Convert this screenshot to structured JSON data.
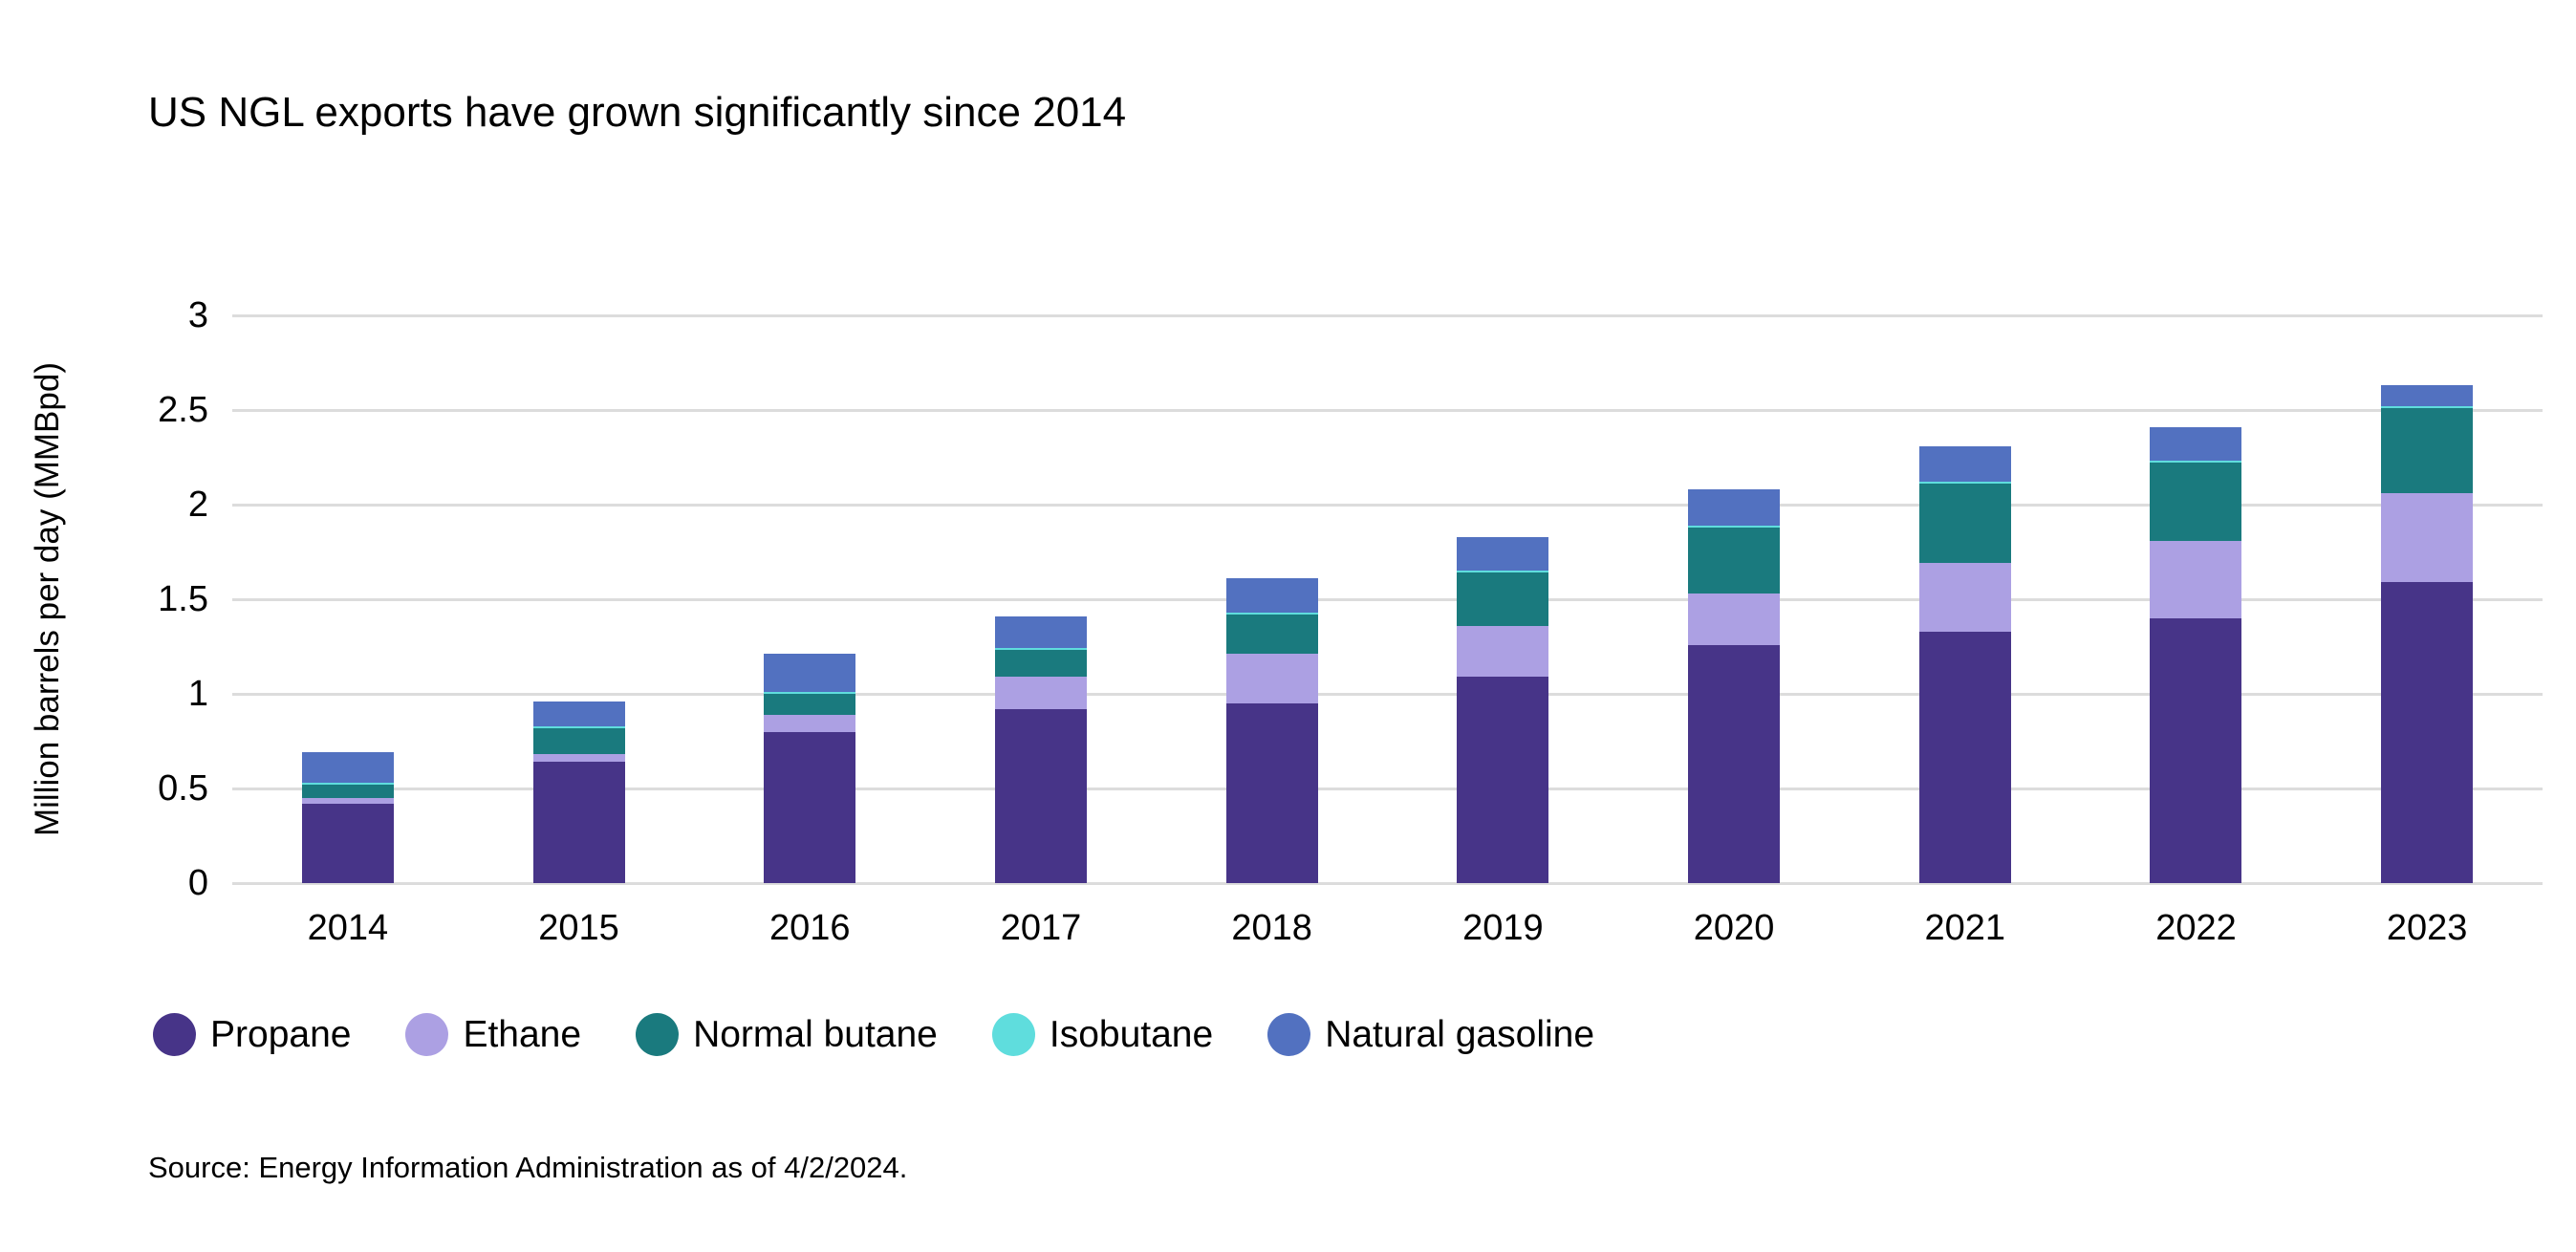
{
  "title": "US NGL exports have grown significantly since 2014",
  "source": "Source: Energy Information Administration as of 4/2/2024.",
  "y_axis": {
    "title": "Million barrels per day (MMBpd)",
    "tick_labels": [
      "0",
      "0.5",
      "1",
      "1.5",
      "2",
      "2.5",
      "3"
    ],
    "tick_values": [
      0,
      0.5,
      1,
      1.5,
      2,
      2.5,
      3
    ]
  },
  "colors": {
    "propane": "#473488",
    "ethane": "#aca0e3",
    "normal_butane": "#1a7a7e",
    "isobutane": "#5fdddd",
    "natural_gasoline": "#5271c0",
    "gridline": "#dcdcdc",
    "text": "#000000"
  },
  "chart_data": {
    "type": "bar",
    "stacked": true,
    "title": "US NGL exports have grown significantly since 2014",
    "xlabel": "",
    "ylabel": "Million barrels per day (MMBpd)",
    "units": "MMBpd",
    "ylim": [
      0,
      3
    ],
    "y_tick_step": 0.5,
    "grid": "horizontal",
    "legend_position": "bottom",
    "categories": [
      "2014",
      "2015",
      "2016",
      "2017",
      "2018",
      "2019",
      "2020",
      "2021",
      "2022",
      "2023"
    ],
    "series": [
      {
        "name": "Propane",
        "color": "#473488",
        "values": [
          0.42,
          0.64,
          0.8,
          0.92,
          0.95,
          1.09,
          1.26,
          1.33,
          1.4,
          1.59
        ]
      },
      {
        "name": "Ethane",
        "color": "#aca0e3",
        "values": [
          0.03,
          0.04,
          0.09,
          0.17,
          0.26,
          0.27,
          0.27,
          0.36,
          0.41,
          0.47
        ]
      },
      {
        "name": "Normal butane",
        "color": "#1a7a7e",
        "values": [
          0.07,
          0.14,
          0.11,
          0.14,
          0.21,
          0.28,
          0.35,
          0.42,
          0.41,
          0.45
        ]
      },
      {
        "name": "Isobutane",
        "color": "#5fdddd",
        "values": [
          0.01,
          0.01,
          0.01,
          0.01,
          0.01,
          0.01,
          0.01,
          0.01,
          0.01,
          0.01
        ]
      },
      {
        "name": "Natural gasoline",
        "color": "#5271c0",
        "values": [
          0.16,
          0.13,
          0.2,
          0.17,
          0.18,
          0.18,
          0.19,
          0.19,
          0.18,
          0.11
        ]
      }
    ],
    "totals": [
      0.69,
      0.96,
      1.21,
      1.41,
      1.61,
      1.83,
      2.08,
      2.31,
      2.41,
      2.63
    ]
  }
}
